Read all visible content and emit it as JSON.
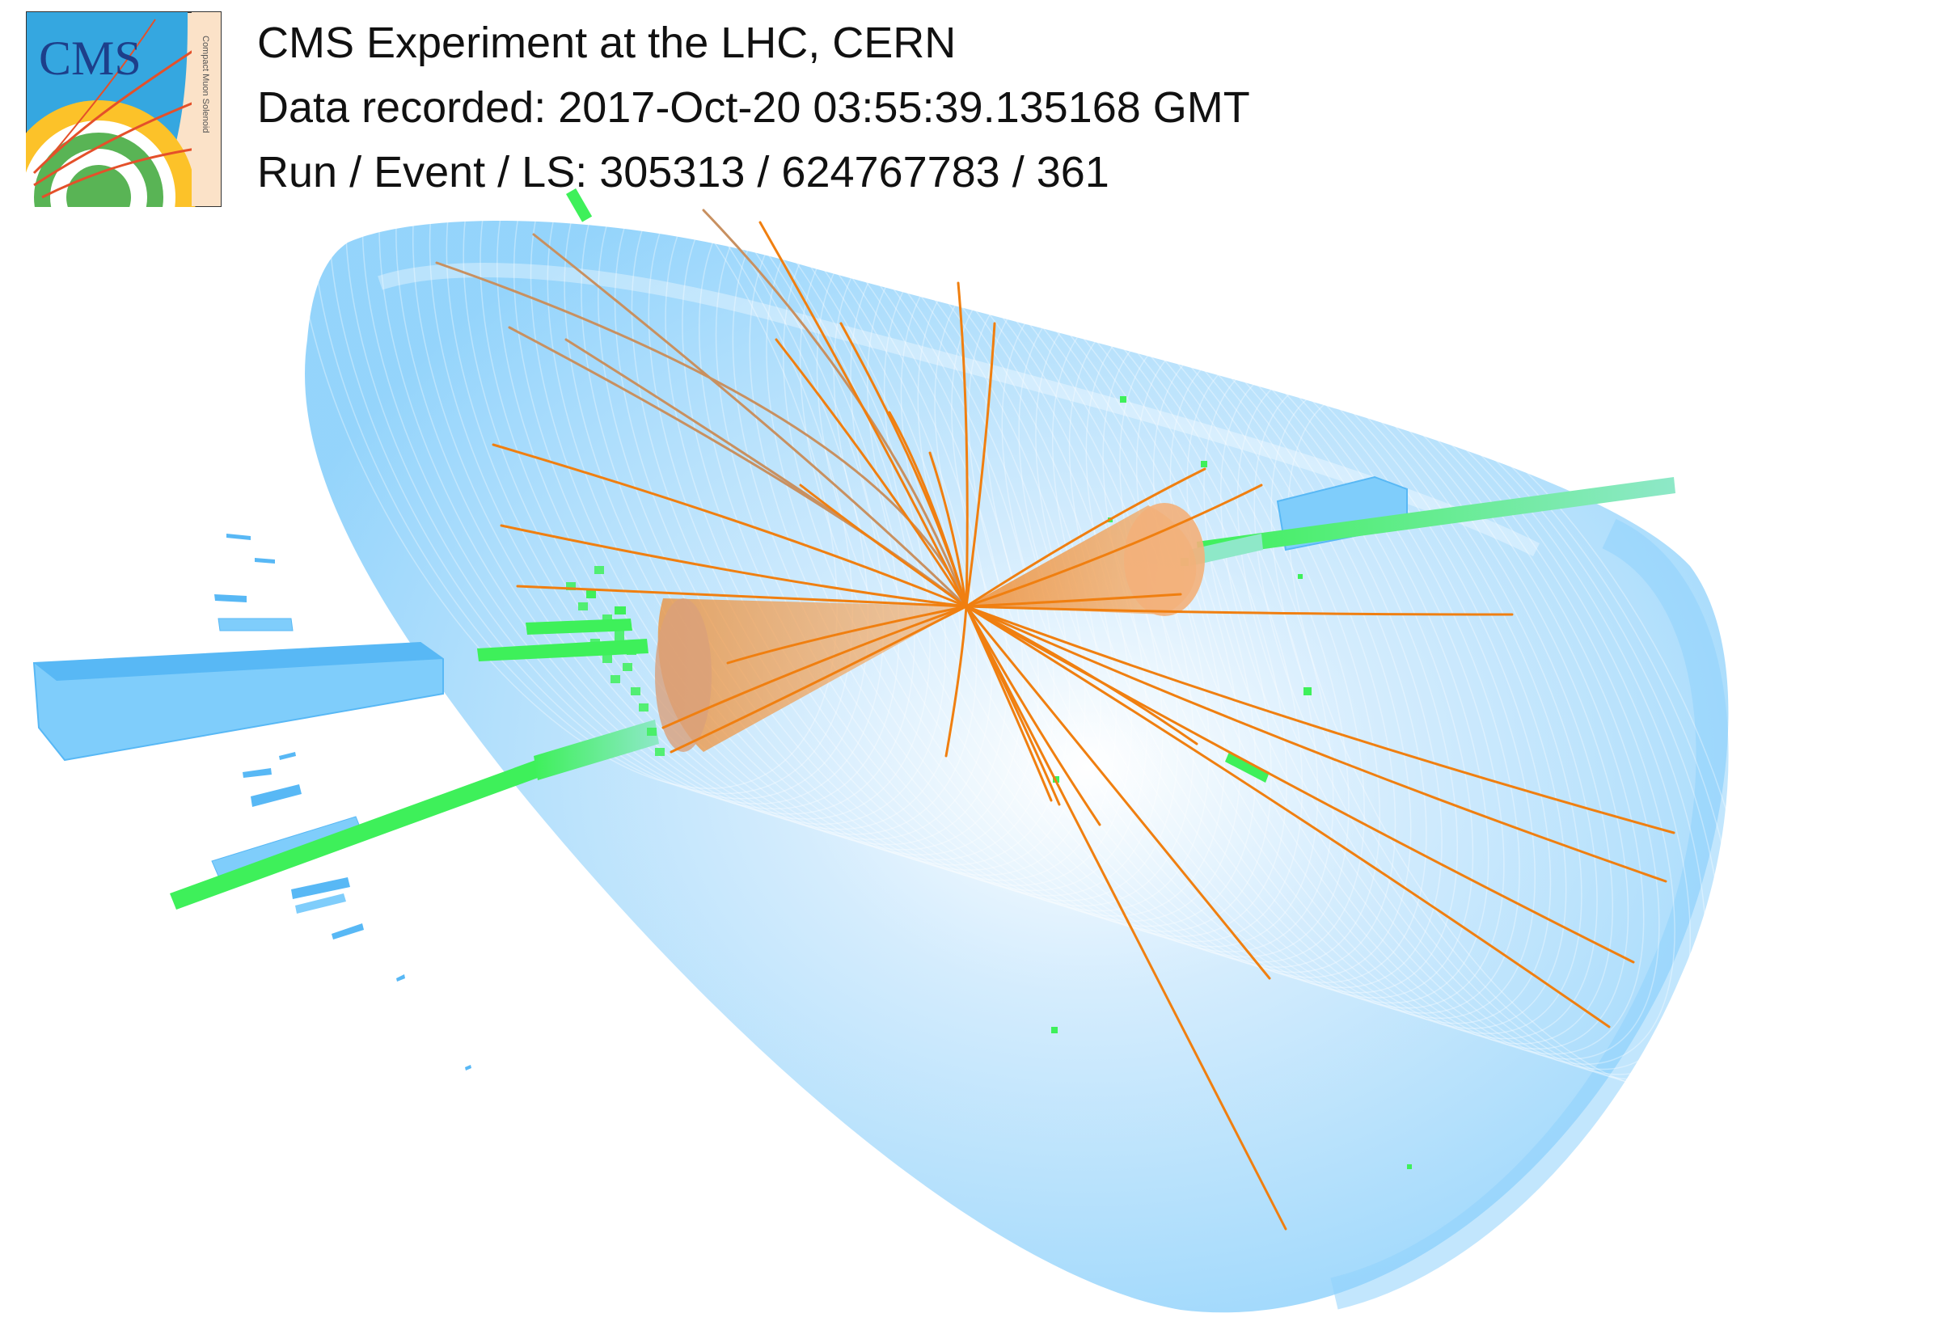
{
  "header": {
    "experiment": "CMS Experiment at the LHC, CERN",
    "recorded": "Data recorded: 2017-Oct-20 03:55:39.135168 GMT",
    "run_event": "Run / Event / LS: 305313 / 624767783 / 361"
  },
  "logo": {
    "text": "CMS",
    "subtitle": "Compact Muon Solenoid",
    "icon": "cms-logo-icon"
  },
  "colors": {
    "calorimeter": "#7fcdfb",
    "tracks": "#f07f10",
    "muon_chambers": "#58b8f5",
    "hcal_deposits": "#3ef05a",
    "jet_cone": "#f0892a",
    "logo_bg": "#fbe2c8",
    "logo_blue": "#35a7e0"
  }
}
